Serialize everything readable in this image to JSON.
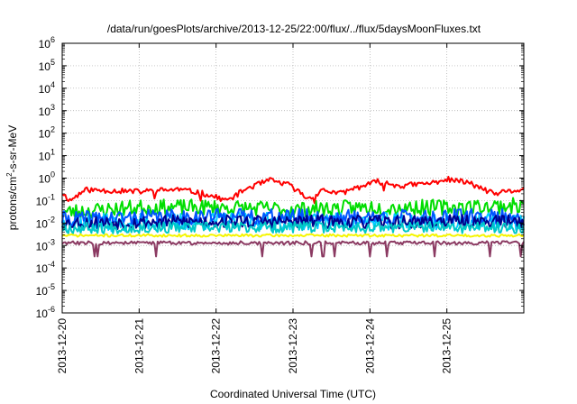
{
  "chart_data": {
    "type": "line",
    "title": "/data/run/goesPlots/archive/2013-12-25/22:00/flux/../flux/5daysMoonFluxes.txt",
    "xlabel": "Coordinated Universal Time (UTC)",
    "ylabel": {
      "base": "protons/cm",
      "sup": "2",
      "rest": "-s-sr-MeV"
    },
    "yscale": "log",
    "ylim": [
      1e-06,
      1000000.0
    ],
    "xlim_days": [
      0,
      6
    ],
    "y_ticks": [
      {
        "exp": "6",
        "value": 1000000.0
      },
      {
        "exp": "5",
        "value": 100000.0
      },
      {
        "exp": "4",
        "value": 10000.0
      },
      {
        "exp": "3",
        "value": 1000.0
      },
      {
        "exp": "2",
        "value": 100.0
      },
      {
        "exp": "1",
        "value": 10.0
      },
      {
        "exp": "0",
        "value": 1
      },
      {
        "exp": "-1",
        "value": 0.1
      },
      {
        "exp": "-2",
        "value": 0.01
      },
      {
        "exp": "-3",
        "value": 0.001
      },
      {
        "exp": "-4",
        "value": 0.0001
      },
      {
        "exp": "-5",
        "value": 1e-05
      },
      {
        "exp": "-6",
        "value": 1e-06
      }
    ],
    "y_tick_base": "10",
    "x_ticks": [
      {
        "label": "2013-12-20",
        "day": 0
      },
      {
        "label": "2013-12-21",
        "day": 1
      },
      {
        "label": "2013-12-22",
        "day": 2
      },
      {
        "label": "2013-12-23",
        "day": 3
      },
      {
        "label": "2013-12-24",
        "day": 4
      },
      {
        "label": "2013-12-25",
        "day": 5
      }
    ],
    "grid": true,
    "legend": "none",
    "series": [
      {
        "color": "#ff0000",
        "base": 0.28,
        "noise": 0.12,
        "seed": 11,
        "anchors": [
          [
            0,
            0.22
          ],
          [
            0.1,
            0.1
          ],
          [
            0.3,
            0.3
          ],
          [
            0.6,
            0.28
          ],
          [
            1.0,
            0.25
          ],
          [
            1.5,
            0.32
          ],
          [
            1.8,
            0.22
          ],
          [
            2.15,
            0.1
          ],
          [
            2.4,
            0.35
          ],
          [
            2.7,
            0.8
          ],
          [
            2.95,
            0.5
          ],
          [
            3.2,
            0.12
          ],
          [
            3.4,
            0.3
          ],
          [
            3.6,
            0.2
          ],
          [
            3.8,
            0.35
          ],
          [
            4.1,
            0.7
          ],
          [
            4.4,
            0.45
          ],
          [
            4.8,
            0.6
          ],
          [
            5.0,
            0.9
          ],
          [
            5.3,
            0.6
          ],
          [
            5.6,
            0.2
          ],
          [
            5.9,
            0.28
          ],
          [
            6.0,
            0.32
          ]
        ]
      },
      {
        "color": "#00dd00",
        "base": 0.045,
        "noise": 0.35,
        "seed": 23,
        "anchors": [
          [
            0,
            0.03
          ],
          [
            1,
            0.05
          ],
          [
            2,
            0.05
          ],
          [
            3,
            0.04
          ],
          [
            4,
            0.05
          ],
          [
            5,
            0.05
          ],
          [
            6,
            0.06
          ]
        ]
      },
      {
        "color": "#00ccff",
        "base": 0.012,
        "noise": 0.4,
        "seed": 37,
        "anchors": [
          [
            0,
            0.01
          ],
          [
            2,
            0.012
          ],
          [
            4,
            0.012
          ],
          [
            6,
            0.011
          ]
        ]
      },
      {
        "color": "#0055ff",
        "base": 0.018,
        "noise": 0.35,
        "seed": 41,
        "anchors": [
          [
            0,
            0.015
          ],
          [
            2,
            0.02
          ],
          [
            4,
            0.018
          ],
          [
            6,
            0.02
          ]
        ]
      },
      {
        "color": "#00008b",
        "base": 0.012,
        "noise": 0.3,
        "seed": 53,
        "anchors": [
          [
            0,
            0.01
          ],
          [
            2,
            0.012
          ],
          [
            4,
            0.011
          ],
          [
            6,
            0.012
          ]
        ]
      },
      {
        "color": "#00c8c8",
        "base": 0.0065,
        "noise": 0.25,
        "seed": 67,
        "anchors": [
          [
            0,
            0.006
          ],
          [
            3,
            0.0065
          ],
          [
            6,
            0.0062
          ]
        ]
      },
      {
        "color": "#f5f500",
        "base": 0.0028,
        "noise": 0.06,
        "seed": 71,
        "anchors": [
          [
            0,
            0.0028
          ],
          [
            6,
            0.0028
          ]
        ]
      },
      {
        "color": "#8b3a62",
        "base": 0.0013,
        "noise": 0.08,
        "seed": 83,
        "anchors": [
          [
            0,
            0.0013
          ],
          [
            6,
            0.0013
          ]
        ]
      }
    ]
  }
}
